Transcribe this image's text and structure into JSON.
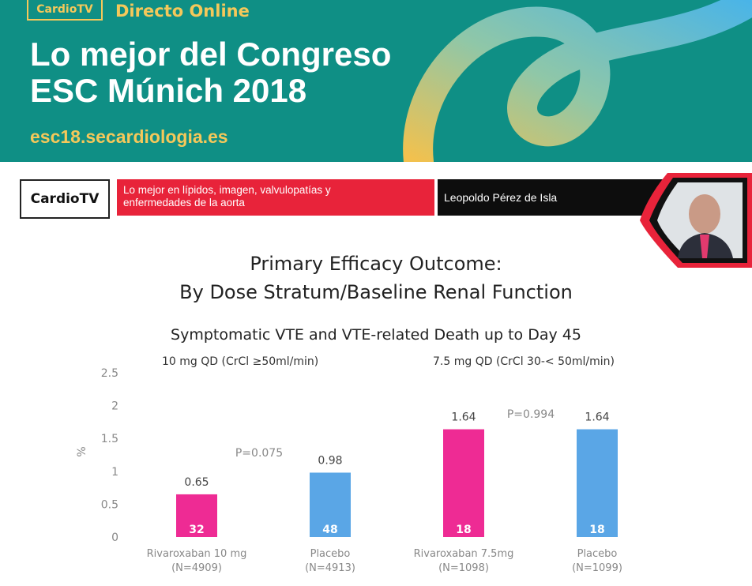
{
  "banner": {
    "brand": "CardioTV",
    "live_label": "Directo Online",
    "title_line1": "Lo mejor del Congreso",
    "title_line2": "ESC Múnich 2018",
    "url": "esc18.secardiologia.es"
  },
  "lower_third": {
    "brand": "CardioTV",
    "topic_line1": "Lo mejor en lípidos, imagen, valvulopatías y",
    "topic_line2": "enfermedades de la aorta",
    "speaker": "Leopoldo Pérez de Isla"
  },
  "slide": {
    "title_line1": "Primary Efficacy Outcome:",
    "title_line2": "By Dose Stratum/Baseline Renal Function"
  },
  "colors": {
    "banner_teal": "#0f8f85",
    "banner_accent": "#f5c85a",
    "topic_red": "#e8233a",
    "rivaroxaban_pink": "#ee2b94",
    "placebo_blue": "#5aa6e6"
  },
  "chart_data": {
    "type": "bar",
    "title": "Symptomatic VTE and VTE-related Death up to Day 45",
    "ylabel": "%",
    "ylim": [
      0,
      2.5
    ],
    "yticks": [
      "0",
      "0.5",
      "1",
      "1.5",
      "2",
      "2.5"
    ],
    "groups": [
      {
        "label": "10 mg QD (CrCl ≥50ml/min)",
        "p_value": "P=0.075"
      },
      {
        "label": "7.5 mg QD (CrCl 30-< 50ml/min)",
        "p_value": "P=0.994"
      }
    ],
    "bars": [
      {
        "group": 0,
        "category": "Rivaroxaban 10 mg",
        "n": "(N=4909)",
        "value": 0.65,
        "value_label": "0.65",
        "events": "32",
        "color": "#ee2b94"
      },
      {
        "group": 0,
        "category": "Placebo",
        "n": "(N=4913)",
        "value": 0.98,
        "value_label": "0.98",
        "events": "48",
        "color": "#5aa6e6"
      },
      {
        "group": 1,
        "category": "Rivaroxaban 7.5mg",
        "n": "(N=1098)",
        "value": 1.64,
        "value_label": "1.64",
        "events": "18",
        "color": "#ee2b94"
      },
      {
        "group": 1,
        "category": "Placebo",
        "n": "(N=1099)",
        "value": 1.64,
        "value_label": "1.64",
        "events": "18",
        "color": "#5aa6e6"
      }
    ]
  }
}
